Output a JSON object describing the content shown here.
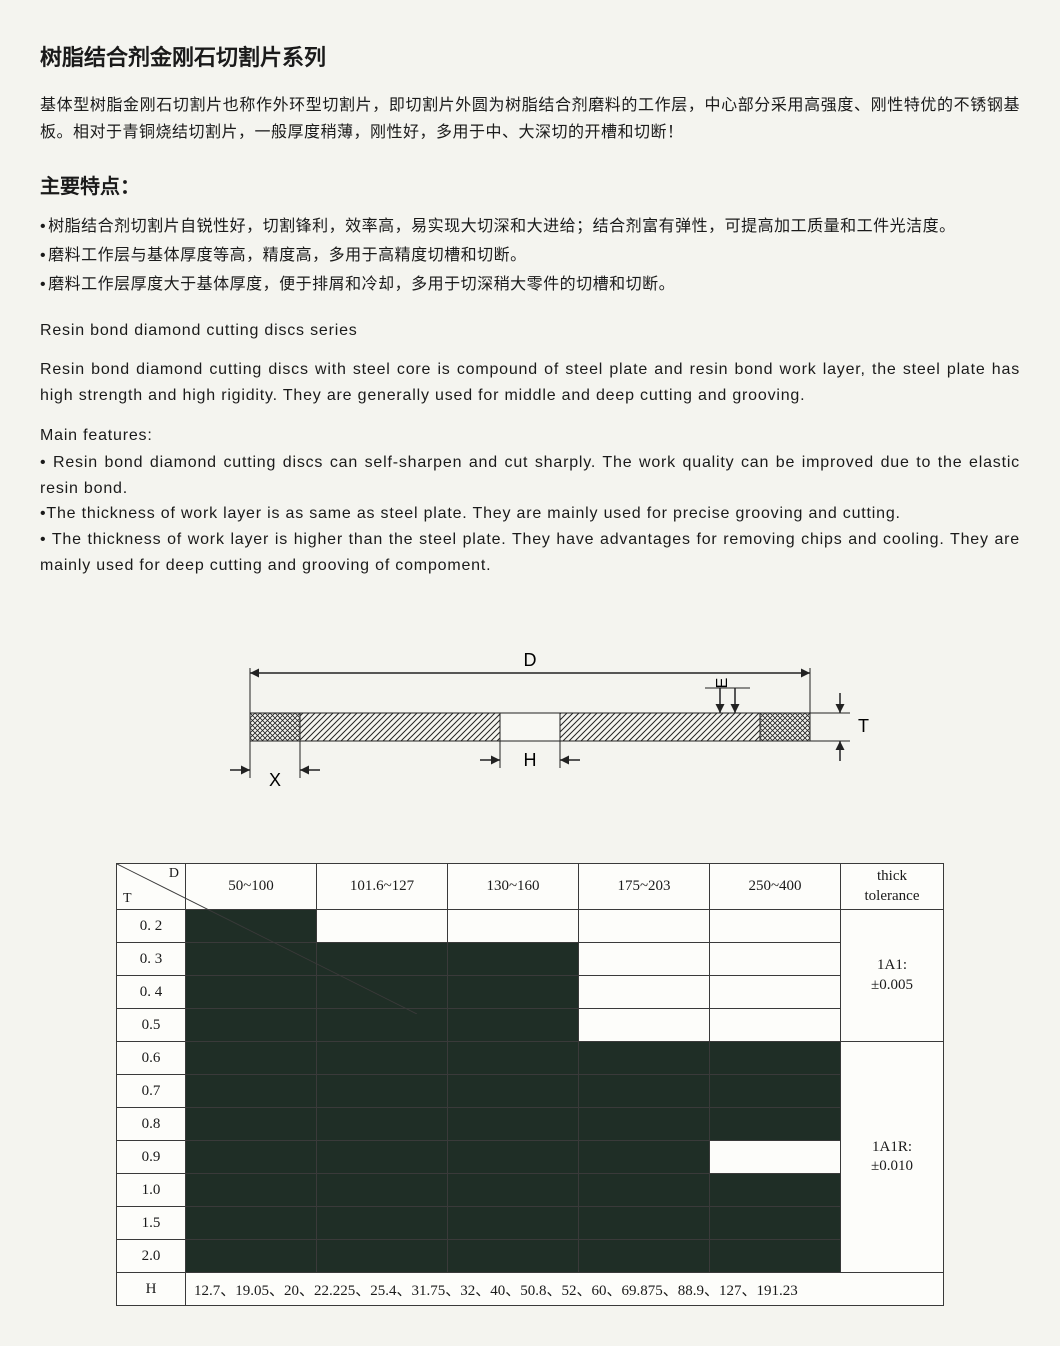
{
  "title_cn": "树脂结合剂金刚石切割片系列",
  "intro_cn": "基体型树脂金刚石切割片也称作外环型切割片，即切割片外圆为树脂结合剂磨料的工作层，中心部分采用高强度、刚性特优的不锈钢基板。相对于青铜烧结切割片，一般厚度稍薄，刚性好，多用于中、大深切的开槽和切断！",
  "features_title_cn": "主要特点：",
  "features_cn": [
    "树脂结合剂切割片自锐性好，切割锋利，效率高，易实现大切深和大进给；结合剂富有弹性，可提高加工质量和工件光洁度。",
    "磨料工作层与基体厚度等高，精度高，多用于高精度切槽和切断。",
    "磨料工作层厚度大于基体厚度，便于排屑和冷却，多用于切深稍大零件的切槽和切断。"
  ],
  "title_en": "Resin bond diamond cutting discs series",
  "intro_en": "Resin bond diamond cutting discs with steel core is compound of steel plate and resin bond work layer, the steel plate has high strength and high rigidity. They are generally used for middle and deep cutting and grooving.",
  "features_title_en": "Main features:",
  "features_en": [
    " Resin bond diamond cutting discs can self-sharpen and cut sharply. The work quality can be improved due to the elastic resin bond.",
    "The thickness of work layer is as same as steel plate. They are mainly used for precise grooving and cutting.",
    " The thickness of work layer is higher than the steel plate. They have advantages for removing chips and cooling. They are mainly used for deep cutting and grooving of compoment."
  ],
  "diagram": {
    "labels": {
      "D": "D",
      "E": "E",
      "T": "T",
      "H": "H",
      "X": "X"
    }
  },
  "table": {
    "corner_D": "D",
    "corner_T": "T",
    "col_headers": [
      "50~100",
      "101.6~127",
      "130~160",
      "175~203",
      "250~400"
    ],
    "thick_header": "thick tolerance",
    "row_headers": [
      "0. 2",
      "0. 3",
      "0. 4",
      "0.5",
      "0.6",
      "0.7",
      "0.8",
      "0.9",
      "1.0",
      "1.5",
      "2.0"
    ],
    "H_label": "H",
    "H_values": "12.7、19.05、20、22.225、25.4、31.75、32、40、50.8、52、60、69.875、88.9、127、191.23",
    "fill_matrix": [
      [
        1,
        0,
        0,
        0,
        0
      ],
      [
        1,
        1,
        1,
        0,
        0
      ],
      [
        1,
        1,
        1,
        0,
        0
      ],
      [
        1,
        1,
        1,
        0,
        0
      ],
      [
        1,
        1,
        1,
        1,
        1
      ],
      [
        1,
        1,
        1,
        1,
        1
      ],
      [
        1,
        1,
        1,
        1,
        1
      ],
      [
        1,
        1,
        1,
        1,
        0
      ],
      [
        1,
        1,
        1,
        1,
        1
      ],
      [
        1,
        1,
        1,
        1,
        1
      ],
      [
        1,
        1,
        1,
        1,
        1
      ]
    ],
    "tolerances": [
      {
        "label1": "1A1:",
        "label2": "±0.005",
        "rowspan": 4
      },
      {
        "label1": "1A1R:",
        "label2": "±0.010",
        "rowspan": 7
      }
    ],
    "colors": {
      "fill": "#1f2e26",
      "border": "#3a3a3a",
      "bg": "#fdfdfa"
    }
  }
}
